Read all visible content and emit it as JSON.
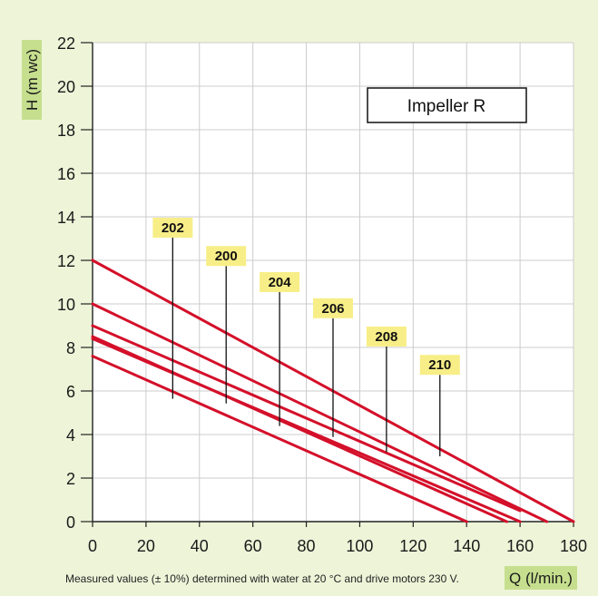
{
  "chart_data": {
    "type": "line",
    "xlabel": "Q (l/min.)",
    "ylabel": "H (m wc)",
    "xlim": [
      0,
      180
    ],
    "ylim": [
      0,
      22
    ],
    "x_ticks": [
      0,
      20,
      40,
      60,
      80,
      100,
      120,
      140,
      160,
      180
    ],
    "y_ticks": [
      0,
      2,
      4,
      6,
      8,
      10,
      12,
      14,
      16,
      18,
      20,
      22
    ],
    "grid": true,
    "legend_box": "Impeller R",
    "note": "Measured values (± 10%) determined with water at 20 °C and drive motors 230 V.",
    "series": [
      {
        "name": "202",
        "label_x": 30,
        "label_y": 13.5,
        "x": [
          0,
          140
        ],
        "y": [
          7.6,
          0
        ]
      },
      {
        "name": "200",
        "label_x": 50,
        "label_y": 12.2,
        "x": [
          0,
          155
        ],
        "y": [
          8.5,
          0
        ]
      },
      {
        "name": "204",
        "label_x": 70,
        "label_y": 11.0,
        "x": [
          0,
          160
        ],
        "y": [
          8.4,
          0
        ]
      },
      {
        "name": "206",
        "label_x": 90,
        "label_y": 9.8,
        "x": [
          0,
          160
        ],
        "y": [
          9.0,
          0.5
        ]
      },
      {
        "name": "208",
        "label_x": 110,
        "label_y": 8.5,
        "x": [
          0,
          170
        ],
        "y": [
          10.0,
          0
        ]
      },
      {
        "name": "210",
        "label_x": 130,
        "label_y": 7.2,
        "x": [
          0,
          180
        ],
        "y": [
          12.0,
          0
        ]
      }
    ]
  },
  "colors": {
    "background": "#eef4d8",
    "plot": "#ffffff",
    "curve": "#d4102a",
    "label_bg": "#f8ee88",
    "axis_title_bg": "#c6df8e",
    "grid": "#cccccc"
  }
}
